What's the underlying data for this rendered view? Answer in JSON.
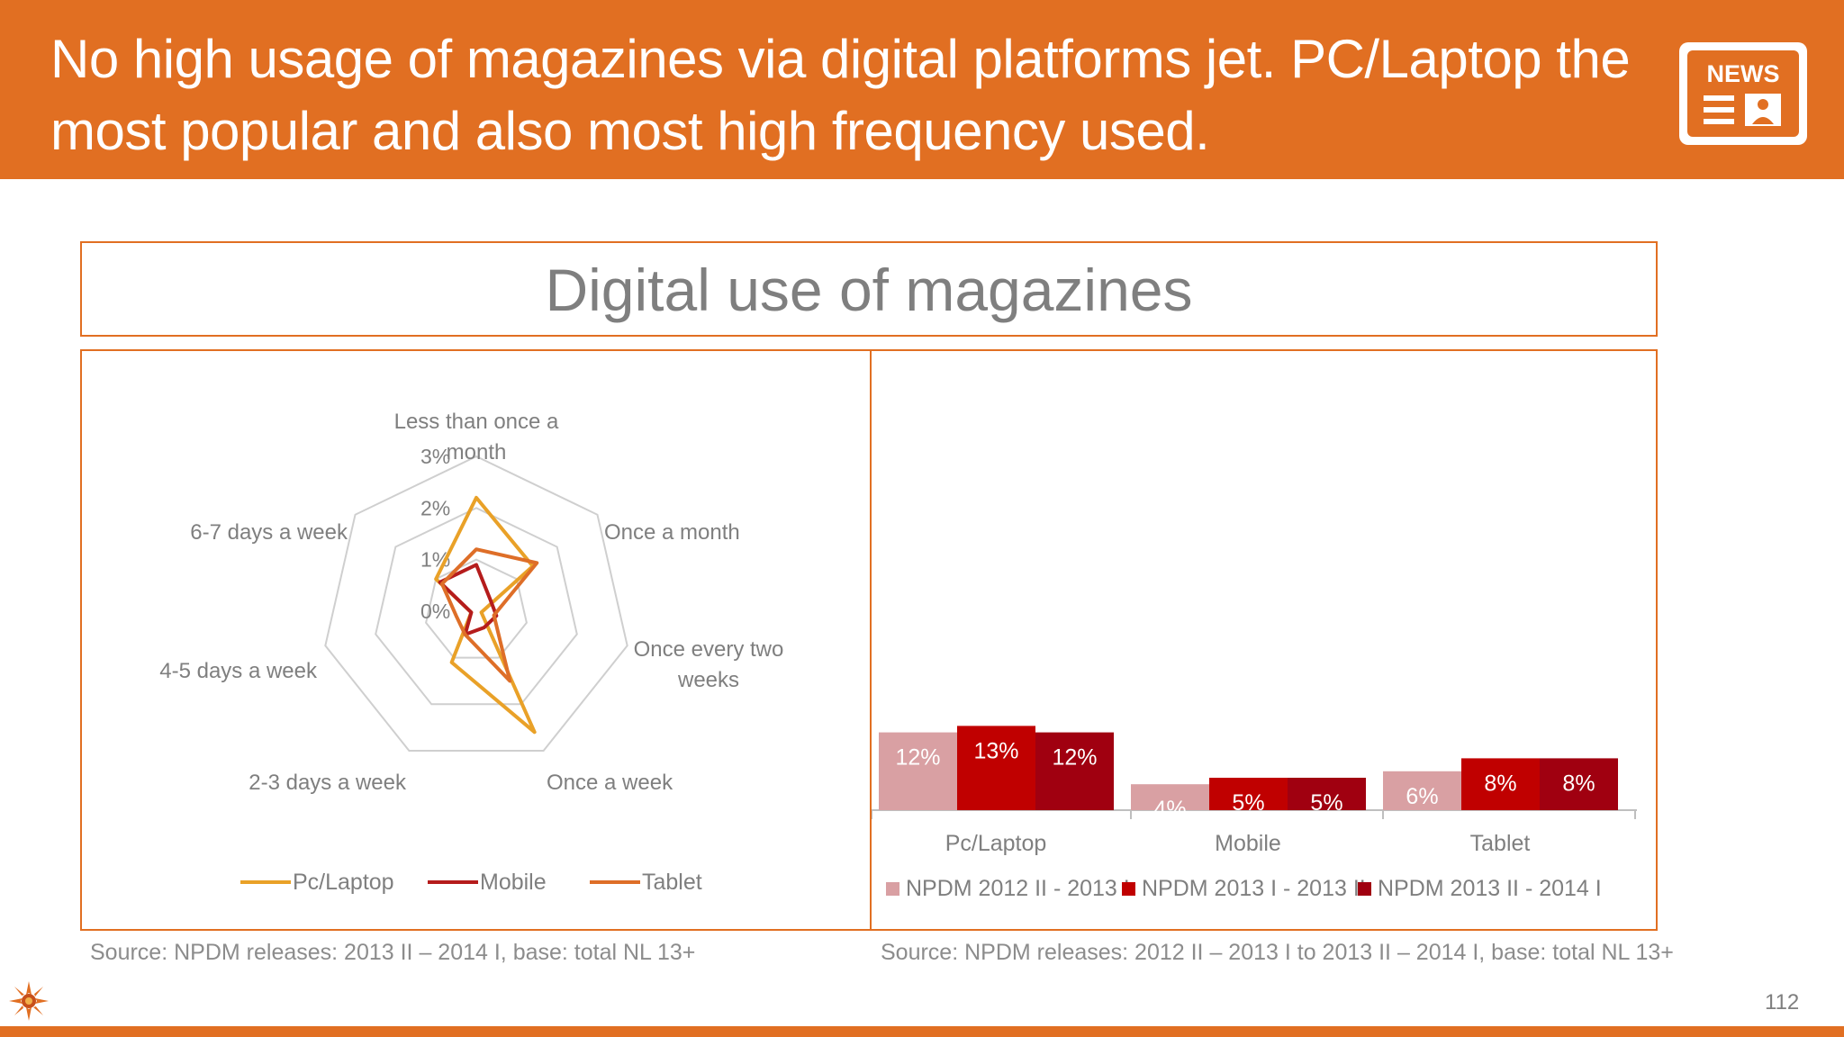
{
  "header": {
    "headline": "No high usage of magazines via digital platforms jet. PC/Laptop the most popular and also most high frequency used.",
    "icon": "news-icon",
    "icon_text": "NEWS",
    "background": "#e16f22"
  },
  "slide_title": "Digital use of magazines",
  "chart_data": [
    {
      "type": "radar",
      "axes": [
        "Less than once a month",
        "Once a month",
        "Once every two weeks",
        "Once a week",
        "2-3 days a week",
        "4-5 days a week",
        "6-7 days a week"
      ],
      "tick_labels": [
        "3%",
        "2%",
        "1%",
        "0%"
      ],
      "rlim": [
        0,
        3
      ],
      "series": [
        {
          "name": "Pc/Laptop",
          "color": "#e9a128",
          "values": [
            2.2,
            1.4,
            0.1,
            2.6,
            1.1,
            0.1,
            1.0
          ]
        },
        {
          "name": "Mobile",
          "color": "#b51c1c",
          "values": [
            0.9,
            0.35,
            0.4,
            0.35,
            0.5,
            0.1,
            0.9
          ]
        },
        {
          "name": "Tablet",
          "color": "#de6e28",
          "values": [
            1.2,
            1.5,
            0.35,
            1.5,
            0.5,
            0.4,
            0.85
          ]
        }
      ],
      "legend": "bottom",
      "source": "Source: NPDM releases: 2013 II – 2014 I, base: total NL 13+"
    },
    {
      "type": "bar",
      "categories": [
        "Pc/Laptop",
        "Mobile",
        "Tablet"
      ],
      "series": [
        {
          "name": "NPDM 2012 II - 2013 I",
          "color": "#d9a0a3",
          "values": [
            12,
            4,
            6
          ]
        },
        {
          "name": "NPDM 2013 I - 2013 II",
          "color": "#c00000",
          "values": [
            13,
            5,
            8
          ]
        },
        {
          "name": "NPDM 2013 II - 2014 I",
          "color": "#a00010",
          "values": [
            12,
            5,
            8
          ]
        }
      ],
      "data_labels": [
        [
          "12%",
          "4%",
          "6%"
        ],
        [
          "13%",
          "5%",
          "8%"
        ],
        [
          "12%",
          "5%",
          "8%"
        ]
      ],
      "ylim": [
        0,
        100
      ],
      "legend": "bottom",
      "source": "Source: NPDM releases: 2012 II – 2013 I to 2013 II – 2014 I, base: total NL 13+"
    }
  ],
  "page_number": "112"
}
